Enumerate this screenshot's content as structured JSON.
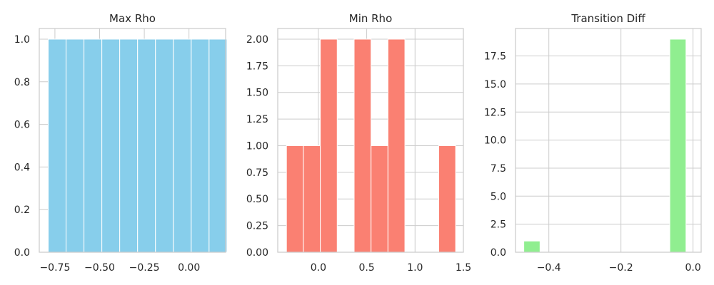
{
  "chart_data": [
    {
      "type": "bar",
      "title": "Max Rho",
      "color": "#87ceeb",
      "xlim": [
        -0.8375,
        0.205
      ],
      "ylim": [
        0,
        1.05
      ],
      "bins": [
        {
          "x0": -0.7875,
          "x1": -0.6875,
          "value": 1
        },
        {
          "x0": -0.6875,
          "x1": -0.5875,
          "value": 1
        },
        {
          "x0": -0.5875,
          "x1": -0.4875,
          "value": 1
        },
        {
          "x0": -0.4875,
          "x1": -0.3875,
          "value": 1
        },
        {
          "x0": -0.3875,
          "x1": -0.2875,
          "value": 1
        },
        {
          "x0": -0.2875,
          "x1": -0.1875,
          "value": 1
        },
        {
          "x0": -0.1875,
          "x1": -0.0875,
          "value": 1
        },
        {
          "x0": -0.0875,
          "x1": 0.0125,
          "value": 1
        },
        {
          "x0": 0.0125,
          "x1": 0.1125,
          "value": 1
        },
        {
          "x0": 0.1125,
          "x1": 0.2125,
          "value": 1
        }
      ],
      "xticks": [
        {
          "value": -0.75,
          "label": "−0.75"
        },
        {
          "value": -0.5,
          "label": "−0.50"
        },
        {
          "value": -0.25,
          "label": "−0.25"
        },
        {
          "value": 0.0,
          "label": "0.00"
        }
      ],
      "yticks": [
        {
          "value": 0.0,
          "label": "0.0"
        },
        {
          "value": 0.2,
          "label": "0.2"
        },
        {
          "value": 0.4,
          "label": "0.4"
        },
        {
          "value": 0.6,
          "label": "0.6"
        },
        {
          "value": 0.8,
          "label": "0.8"
        },
        {
          "value": 1.0,
          "label": "1.0"
        }
      ]
    },
    {
      "type": "bar",
      "title": "Min Rho",
      "color": "#fa8072",
      "xlim": [
        -0.42,
        1.5
      ],
      "ylim": [
        0,
        2.1
      ],
      "bins": [
        {
          "x0": -0.33,
          "x1": -0.155,
          "value": 1
        },
        {
          "x0": -0.155,
          "x1": 0.02,
          "value": 1
        },
        {
          "x0": 0.02,
          "x1": 0.195,
          "value": 2
        },
        {
          "x0": 0.195,
          "x1": 0.37,
          "value": 0
        },
        {
          "x0": 0.37,
          "x1": 0.545,
          "value": 2
        },
        {
          "x0": 0.545,
          "x1": 0.72,
          "value": 1
        },
        {
          "x0": 0.72,
          "x1": 0.895,
          "value": 2
        },
        {
          "x0": 0.895,
          "x1": 1.07,
          "value": 0
        },
        {
          "x0": 1.07,
          "x1": 1.245,
          "value": 0
        },
        {
          "x0": 1.245,
          "x1": 1.42,
          "value": 1
        }
      ],
      "xticks": [
        {
          "value": 0.0,
          "label": "0.0"
        },
        {
          "value": 0.5,
          "label": "0.5"
        },
        {
          "value": 1.0,
          "label": "1.0"
        },
        {
          "value": 1.5,
          "label": "1.5"
        }
      ],
      "yticks": [
        {
          "value": 0.0,
          "label": "0.00"
        },
        {
          "value": 0.25,
          "label": "0.25"
        },
        {
          "value": 0.5,
          "label": "0.50"
        },
        {
          "value": 0.75,
          "label": "0.75"
        },
        {
          "value": 1.0,
          "label": "1.00"
        },
        {
          "value": 1.25,
          "label": "1.25"
        },
        {
          "value": 1.5,
          "label": "1.50"
        },
        {
          "value": 1.75,
          "label": "1.75"
        },
        {
          "value": 2.0,
          "label": "2.00"
        }
      ]
    },
    {
      "type": "bar",
      "title": "Transition Diff",
      "color": "#90ee90",
      "xlim": [
        -0.4925,
        0.0225
      ],
      "ylim": [
        0,
        19.95
      ],
      "bins": [
        {
          "x0": -0.4695,
          "x1": -0.4245,
          "value": 1
        },
        {
          "x0": -0.4245,
          "x1": -0.3795,
          "value": 0
        },
        {
          "x0": -0.3795,
          "x1": -0.3345,
          "value": 0
        },
        {
          "x0": -0.3345,
          "x1": -0.2895,
          "value": 0
        },
        {
          "x0": -0.2895,
          "x1": -0.2445,
          "value": 0
        },
        {
          "x0": -0.2445,
          "x1": -0.1995,
          "value": 0
        },
        {
          "x0": -0.1995,
          "x1": -0.1545,
          "value": 0
        },
        {
          "x0": -0.1545,
          "x1": -0.1095,
          "value": 0
        },
        {
          "x0": -0.1095,
          "x1": -0.0645,
          "value": 0
        },
        {
          "x0": -0.0645,
          "x1": -0.0195,
          "value": 19
        }
      ],
      "xticks": [
        {
          "value": -0.4,
          "label": "−0.4"
        },
        {
          "value": -0.2,
          "label": "−0.2"
        },
        {
          "value": 0.0,
          "label": "0.0"
        }
      ],
      "yticks": [
        {
          "value": 0.0,
          "label": "0.0"
        },
        {
          "value": 2.5,
          "label": "2.5"
        },
        {
          "value": 5.0,
          "label": "5.0"
        },
        {
          "value": 7.5,
          "label": "7.5"
        },
        {
          "value": 10.0,
          "label": "10.0"
        },
        {
          "value": 12.5,
          "label": "12.5"
        },
        {
          "value": 15.0,
          "label": "15.0"
        },
        {
          "value": 17.5,
          "label": "17.5"
        }
      ]
    }
  ]
}
